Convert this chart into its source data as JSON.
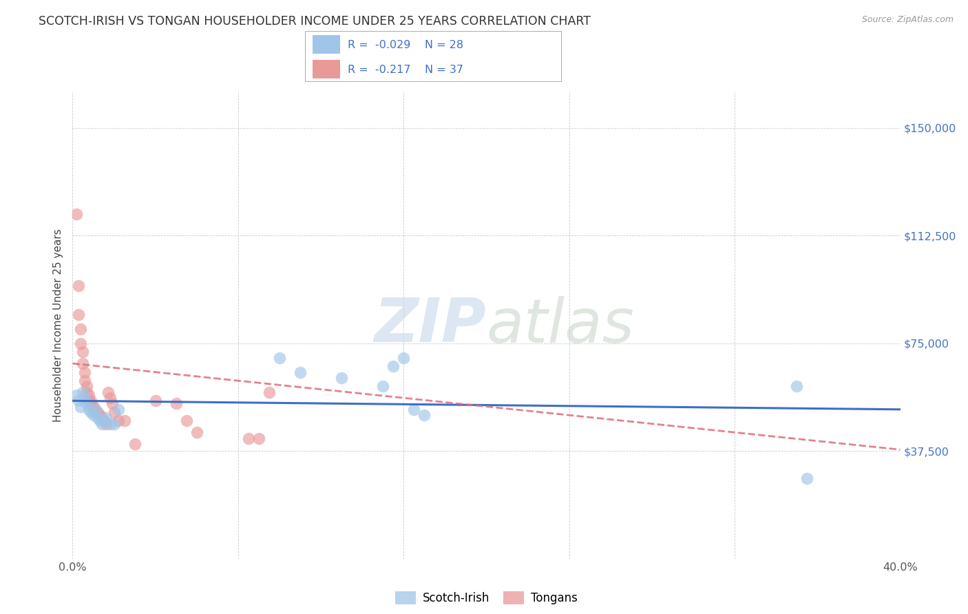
{
  "title": "SCOTCH-IRISH VS TONGAN HOUSEHOLDER INCOME UNDER 25 YEARS CORRELATION CHART",
  "source": "Source: ZipAtlas.com",
  "ylabel": "Householder Income Under 25 years",
  "watermark_zip": "ZIP",
  "watermark_atlas": "atlas",
  "legend_label1": "Scotch-Irish",
  "legend_label2": "Tongans",
  "legend_R1": "-0.029",
  "legend_N1": "28",
  "legend_R2": "-0.217",
  "legend_N2": "37",
  "scotch_irish_color": "#9fc5e8",
  "tongan_color": "#ea9999",
  "scotch_irish_line_color": "#3d6ec9",
  "tongan_line_color": "#e06c7a",
  "xlim": [
    0.0,
    0.4
  ],
  "ylim": [
    0,
    162500
  ],
  "ytick_positions": [
    0,
    37500,
    75000,
    112500,
    150000
  ],
  "ytick_labels_right": [
    "",
    "$37,500",
    "$75,000",
    "$112,500",
    "$150,000"
  ],
  "xtick_positions": [
    0.0,
    0.08,
    0.16,
    0.24,
    0.32,
    0.4
  ],
  "xtick_labels": [
    "0.0%",
    "",
    "",
    "",
    "",
    "40.0%"
  ],
  "si_x": [
    0.002,
    0.003,
    0.004,
    0.005,
    0.006,
    0.007,
    0.008,
    0.009,
    0.01,
    0.011,
    0.012,
    0.013,
    0.014,
    0.015,
    0.016,
    0.018,
    0.02,
    0.022,
    0.1,
    0.11,
    0.13,
    0.15,
    0.155,
    0.16,
    0.165,
    0.17,
    0.35,
    0.355
  ],
  "si_y": [
    57000,
    55000,
    53000,
    58000,
    56000,
    54000,
    52000,
    51000,
    50000,
    52000,
    49000,
    48000,
    47000,
    48000,
    49000,
    47000,
    47000,
    52000,
    70000,
    65000,
    63000,
    60000,
    67000,
    70000,
    52000,
    50000,
    60000,
    28000
  ],
  "to_x": [
    0.002,
    0.003,
    0.003,
    0.004,
    0.004,
    0.005,
    0.005,
    0.006,
    0.006,
    0.007,
    0.007,
    0.008,
    0.008,
    0.009,
    0.009,
    0.01,
    0.01,
    0.011,
    0.012,
    0.013,
    0.014,
    0.015,
    0.016,
    0.017,
    0.018,
    0.019,
    0.02,
    0.022,
    0.025,
    0.03,
    0.04,
    0.05,
    0.055,
    0.06,
    0.085,
    0.09,
    0.095
  ],
  "to_y": [
    120000,
    95000,
    85000,
    80000,
    75000,
    72000,
    68000,
    65000,
    62000,
    60000,
    58000,
    57000,
    55000,
    55000,
    54000,
    53000,
    52000,
    51000,
    51000,
    50000,
    49000,
    48000,
    47000,
    58000,
    56000,
    54000,
    51000,
    48000,
    48000,
    40000,
    55000,
    54000,
    48000,
    44000,
    42000,
    42000,
    58000
  ]
}
